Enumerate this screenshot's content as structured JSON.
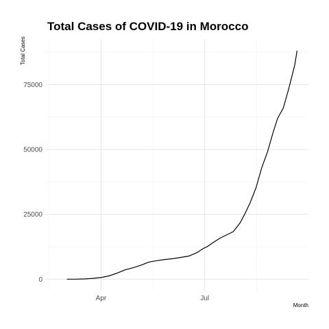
{
  "chart_data": {
    "type": "line",
    "title": "Total Cases of COVID-19 in Morocco",
    "xlabel": "Month",
    "ylabel": "Total Cases",
    "x_tick_labels": [
      {
        "date": "2020-04-01",
        "label": "Apr"
      },
      {
        "date": "2020-07-01",
        "label": "Jul"
      }
    ],
    "y_ticks": [
      0,
      25000,
      50000,
      75000
    ],
    "y_tick_labels": [
      "0",
      "25000",
      "50000",
      "75000"
    ],
    "xlim": [
      "2020-02-12",
      "2020-09-30"
    ],
    "ylim": [
      -4400,
      92500
    ],
    "grid": true,
    "legend": "none",
    "series": [
      {
        "x": [
          "2020-03-02",
          "2020-03-10",
          "2020-03-18",
          "2020-03-25",
          "2020-04-01",
          "2020-04-08",
          "2020-04-15",
          "2020-04-22",
          "2020-04-29",
          "2020-05-06",
          "2020-05-13",
          "2020-05-20",
          "2020-05-27",
          "2020-06-03",
          "2020-06-10",
          "2020-06-17",
          "2020-06-24",
          "2020-06-30",
          "2020-07-03",
          "2020-07-08",
          "2020-07-14",
          "2020-07-20",
          "2020-07-26",
          "2020-08-01",
          "2020-08-05",
          "2020-08-10",
          "2020-08-15",
          "2020-08-20",
          "2020-08-25",
          "2020-08-30",
          "2020-09-03",
          "2020-09-08",
          "2020-09-13",
          "2020-09-18",
          "2020-09-20"
        ],
        "y": [
          1,
          20,
          115,
          330,
          650,
          1280,
          2300,
          3600,
          4400,
          5400,
          6600,
          7150,
          7600,
          7900,
          8400,
          8900,
          10200,
          11900,
          12500,
          14000,
          15700,
          17000,
          18300,
          21700,
          25000,
          29600,
          35200,
          42900,
          49000,
          56600,
          62000,
          66000,
          73800,
          82600,
          88000
        ]
      }
    ]
  }
}
